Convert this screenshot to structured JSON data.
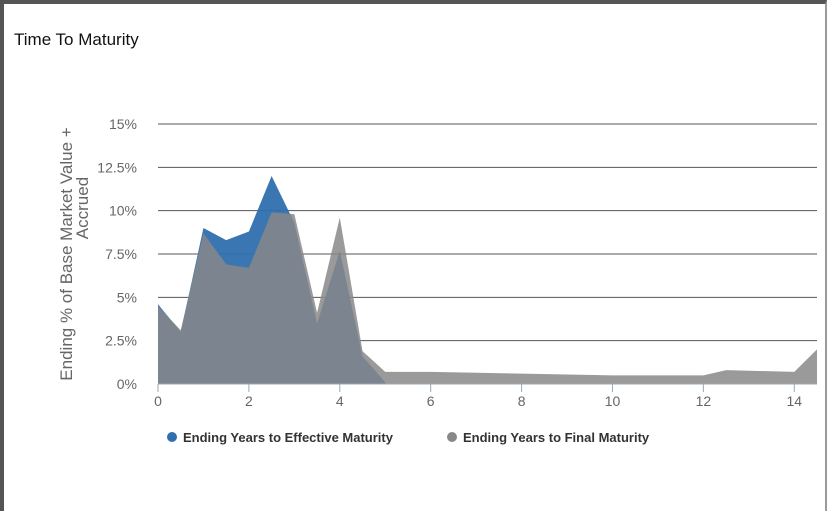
{
  "window": {
    "title": "Time To Maturity"
  },
  "chart_data": {
    "type": "area",
    "title": "Time To Maturity",
    "ylabel": [
      "Ending % of Base Market Value +",
      "Accrued"
    ],
    "xlabel": "",
    "xlim": [
      0,
      14.5
    ],
    "ylim": [
      0,
      15
    ],
    "x_ticks": [
      0,
      2,
      4,
      6,
      8,
      10,
      12,
      14
    ],
    "x_tick_labels": [
      "0",
      "2",
      "4",
      "6",
      "8",
      "10",
      "12",
      "14"
    ],
    "y_ticks": [
      0,
      2.5,
      5,
      7.5,
      10,
      12.5,
      15
    ],
    "y_tick_labels": [
      "0%",
      "2.5%",
      "5%",
      "7.5%",
      "10%",
      "12.5%",
      "15%"
    ],
    "grid": true,
    "legend_position": "bottom",
    "series": [
      {
        "name": "Ending Years to Effective Maturity",
        "color": "#2f6fae",
        "x": [
          0,
          0.5,
          1,
          1.5,
          2,
          2.5,
          3,
          3.5,
          4,
          4.5,
          5
        ],
        "values": [
          4.6,
          3.0,
          9.0,
          8.3,
          8.8,
          12.0,
          9.3,
          3.5,
          7.7,
          1.6,
          0.1
        ]
      },
      {
        "name": "Ending Years to Final Maturity",
        "color": "#888888",
        "x": [
          0,
          0.5,
          1,
          1.5,
          2,
          2.5,
          3,
          3.5,
          4,
          4.5,
          5,
          6,
          8,
          10,
          12,
          12.5,
          14,
          14.5
        ],
        "values": [
          4.5,
          3.1,
          8.7,
          6.9,
          6.7,
          9.9,
          9.8,
          4.1,
          9.6,
          1.9,
          0.7,
          0.7,
          0.6,
          0.5,
          0.5,
          0.8,
          0.7,
          2.0
        ]
      }
    ]
  }
}
